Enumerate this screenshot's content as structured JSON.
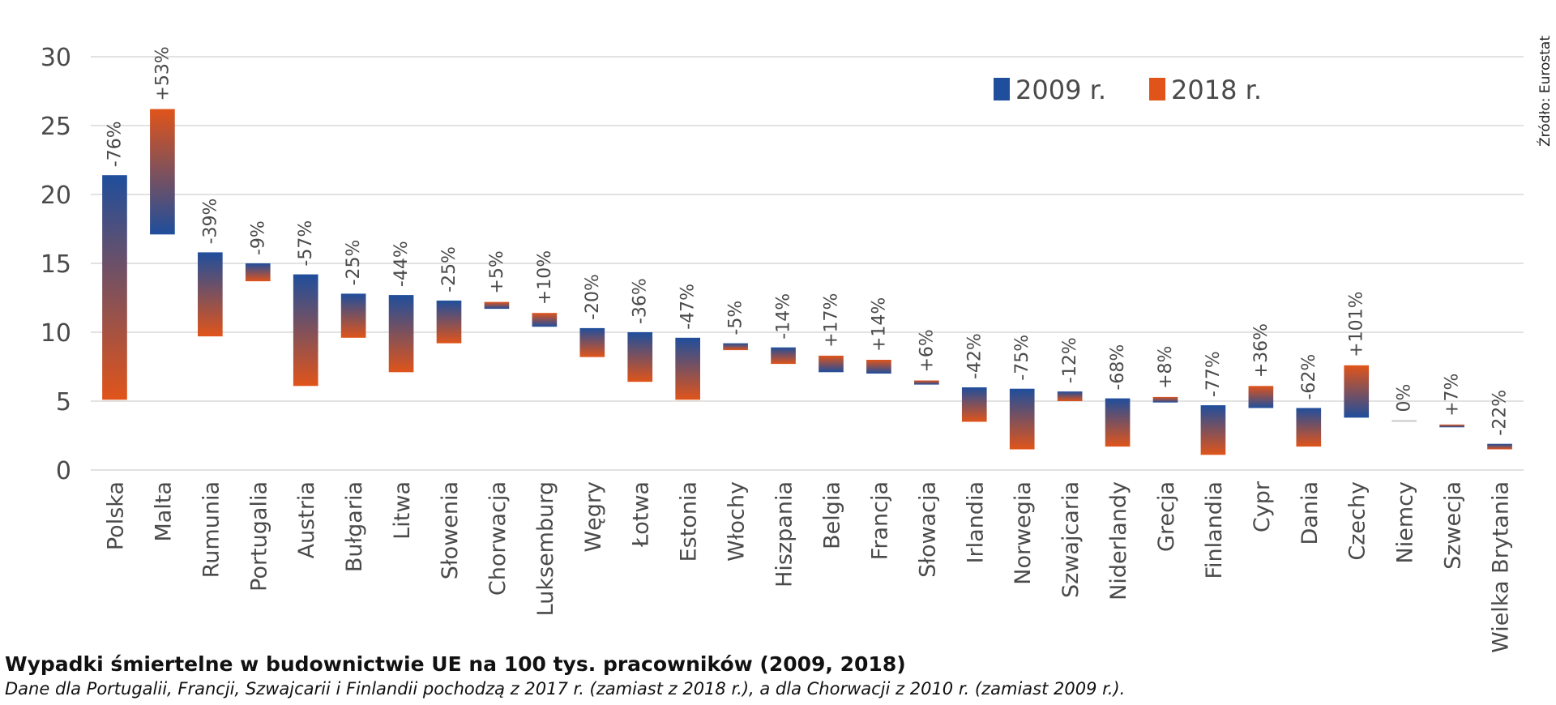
{
  "title": "Wypadki śmiertelne w budownictwie UE na 100 tys. pracowników (2009, 2018)",
  "subtitle": "Dane dla Portugalii, Francji, Szwajcarii i Finlandii pochodzą z 2017 r. (zamiast z 2018 r.), a dla Chorwacji z 2010 r. (zamiast 2009 r.).",
  "source": "Źródło: Eurostat",
  "colors": {
    "start": "#1f4e9c",
    "end": "#e0541a",
    "grid": "#d9d9d9",
    "text": "#4a4a4a"
  },
  "chart_data": {
    "type": "bar",
    "subtype": "change-bar",
    "ylim": [
      0,
      30
    ],
    "yticks": [
      "0",
      "5",
      "10",
      "15",
      "20",
      "25",
      "30"
    ],
    "grid": true,
    "legend_position": "top-right",
    "series": [
      {
        "name": "2009 r.",
        "color": "#1f4e9c"
      },
      {
        "name": "2018 r.",
        "color": "#e0541a"
      }
    ],
    "categories": [
      "Polska",
      "Malta",
      "Rumunia",
      "Portugalia",
      "Austria",
      "Bułgaria",
      "Litwa",
      "Słowenia",
      "Chorwacja",
      "Luksemburg",
      "Węgry",
      "Łotwa",
      "Estonia",
      "Włochy",
      "Hiszpania",
      "Belgia",
      "Francja",
      "Słowacja",
      "Irlandia",
      "Norwegia",
      "Szwajcaria",
      "Niderlandy",
      "Grecja",
      "Finlandia",
      "Cypr",
      "Dania",
      "Czechy",
      "Niemcy",
      "Szwecja",
      "Wielka Brytania"
    ],
    "values_2009": [
      21.4,
      17.1,
      15.8,
      15.0,
      14.2,
      12.8,
      12.7,
      12.3,
      11.7,
      10.4,
      10.3,
      10.0,
      9.6,
      9.2,
      8.9,
      7.1,
      7.0,
      6.2,
      6.0,
      5.9,
      5.7,
      5.2,
      4.9,
      4.7,
      4.5,
      4.5,
      3.8,
      3.5,
      3.1,
      1.9
    ],
    "values_2018": [
      5.1,
      26.2,
      9.7,
      13.7,
      6.1,
      9.6,
      7.1,
      9.2,
      12.2,
      11.4,
      8.2,
      6.4,
      5.1,
      8.7,
      7.7,
      8.3,
      8.0,
      6.5,
      3.5,
      1.5,
      5.0,
      1.7,
      5.3,
      1.1,
      6.1,
      1.7,
      7.6,
      3.5,
      3.3,
      1.5
    ],
    "change_labels": [
      "-76%",
      "+53%",
      "-39%",
      "-9%",
      "-57%",
      "-25%",
      "-44%",
      "-25%",
      "+5%",
      "+10%",
      "-20%",
      "-36%",
      "-47%",
      "-5%",
      "-14%",
      "+17%",
      "+14%",
      "+6%",
      "-42%",
      "-75%",
      "-12%",
      "-68%",
      "+8%",
      "-77%",
      "+36%",
      "-62%",
      "+101%",
      "0%",
      "+7%",
      "-22%"
    ]
  }
}
